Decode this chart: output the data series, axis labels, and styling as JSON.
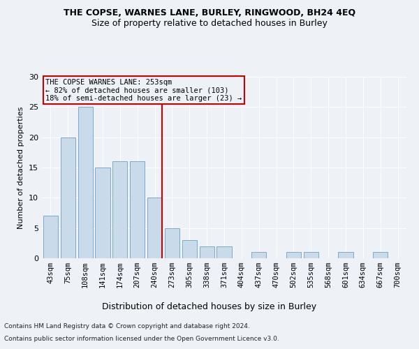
{
  "title": "THE COPSE, WARNES LANE, BURLEY, RINGWOOD, BH24 4EQ",
  "subtitle": "Size of property relative to detached houses in Burley",
  "xlabel": "Distribution of detached houses by size in Burley",
  "ylabel": "Number of detached properties",
  "bin_labels": [
    "43sqm",
    "75sqm",
    "108sqm",
    "141sqm",
    "174sqm",
    "207sqm",
    "240sqm",
    "273sqm",
    "305sqm",
    "338sqm",
    "371sqm",
    "404sqm",
    "437sqm",
    "470sqm",
    "502sqm",
    "535sqm",
    "568sqm",
    "601sqm",
    "634sqm",
    "667sqm",
    "700sqm"
  ],
  "values": [
    7,
    20,
    25,
    15,
    16,
    16,
    10,
    5,
    3,
    2,
    2,
    0,
    1,
    0,
    1,
    1,
    0,
    1,
    0,
    1,
    0
  ],
  "bar_color": "#c9daea",
  "bar_edge_color": "#7aaac8",
  "ylim": [
    0,
    30
  ],
  "yticks": [
    0,
    5,
    10,
    15,
    20,
    25,
    30
  ],
  "vline_x": 6.43,
  "marker_label_line1": "THE COPSE WARNES LANE: 253sqm",
  "marker_label_line2": "← 82% of detached houses are smaller (103)",
  "marker_label_line3": "18% of semi-detached houses are larger (23) →",
  "annotation_box_color": "#cc0000",
  "vline_color": "#cc0000",
  "footer1": "Contains HM Land Registry data © Crown copyright and database right 2024.",
  "footer2": "Contains public sector information licensed under the Open Government Licence v3.0.",
  "bg_color": "#eef2f7",
  "grid_color": "#ffffff",
  "title_fontsize": 9,
  "subtitle_fontsize": 9,
  "ylabel_fontsize": 8,
  "xlabel_fontsize": 9,
  "tick_fontsize": 7.5,
  "annotation_fontsize": 7.5,
  "footer_fontsize": 6.5
}
